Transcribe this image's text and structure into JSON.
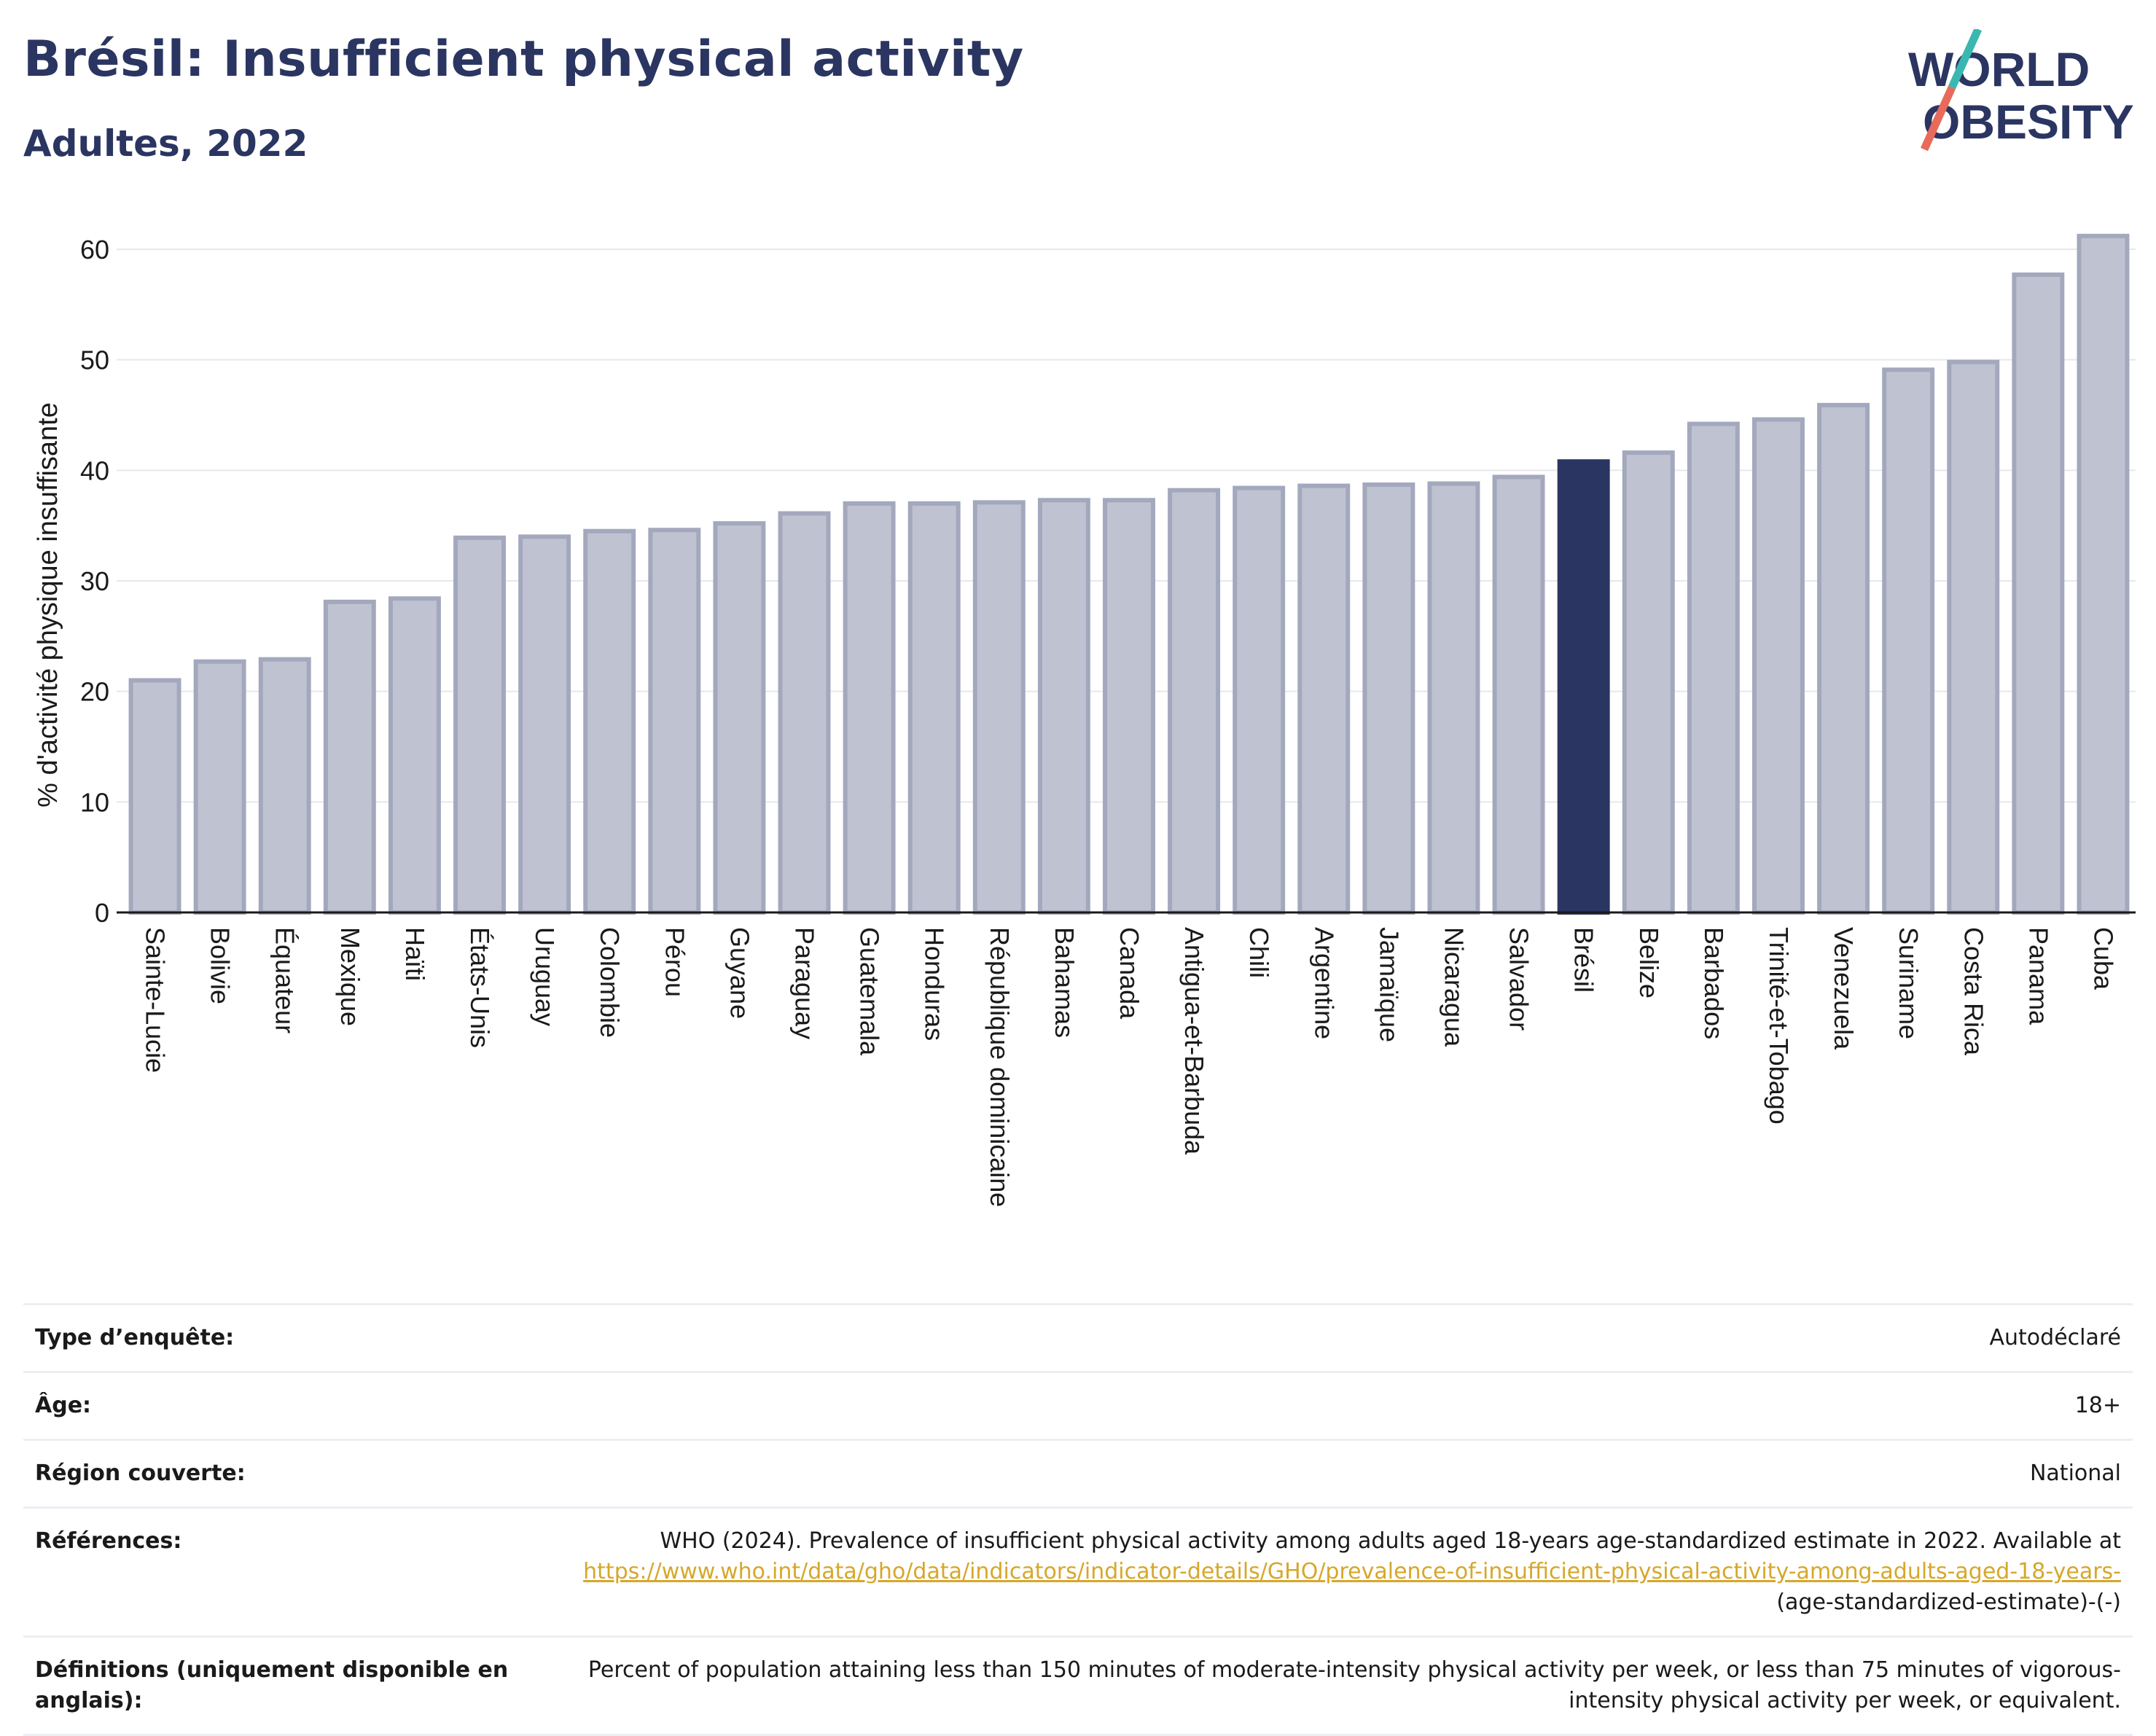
{
  "header": {
    "title": "Brésil: Insufficient physical activity",
    "subtitle": "Adultes, 2022",
    "logo_line1": "WORLD",
    "logo_line2": "OBESITY"
  },
  "colors": {
    "title": "#2b3561",
    "bar": "#bfc3d1",
    "bar_border": "#a3a8bd",
    "highlight": "#2b3561",
    "link": "#d6a72a",
    "logo_teal": "#3bb7b1",
    "logo_coral": "#e86a5a"
  },
  "chart_data": {
    "type": "bar",
    "ylabel": "% d'activité physique insuffisante",
    "ylim": [
      0,
      63
    ],
    "yticks": [
      0,
      10,
      20,
      30,
      40,
      50,
      60
    ],
    "grid": true,
    "highlight": "Brésil",
    "categories": [
      "Sainte-Lucie",
      "Bolivie",
      "Équateur",
      "Mexique",
      "Haïti",
      "États-Unis",
      "Uruguay",
      "Colombie",
      "Pérou",
      "Guyane",
      "Paraguay",
      "Guatemala",
      "Honduras",
      "République dominicaine",
      "Bahamas",
      "Canada",
      "Antigua-et-Barbuda",
      "Chili",
      "Argentine",
      "Jamaïque",
      "Nicaragua",
      "Salvador",
      "Brésil",
      "Belize",
      "Barbados",
      "Trinité-et-Tobago",
      "Venezuela",
      "Suriname",
      "Costa Rica",
      "Panama",
      "Cuba"
    ],
    "values": [
      21.0,
      22.7,
      22.9,
      28.1,
      28.4,
      33.9,
      34.0,
      34.5,
      34.6,
      35.2,
      36.1,
      37.0,
      37.0,
      37.1,
      37.3,
      37.3,
      38.2,
      38.4,
      38.6,
      38.7,
      38.8,
      39.4,
      40.8,
      41.6,
      44.2,
      44.6,
      45.9,
      49.1,
      49.8,
      57.7,
      61.2
    ]
  },
  "meta": {
    "survey_type_label": "Type d’enquête:",
    "survey_type_value": "Autodéclaré",
    "age_label": "Âge:",
    "age_value": "18+",
    "region_label": "Région couverte:",
    "region_value": "National",
    "references_label": "Références:",
    "references_text": "WHO (2024). Prevalence of insufficient physical activity among adults aged 18-years age-standardized estimate in 2022. Available at",
    "references_link": "https://www.who.int/data/gho/data/indicators/indicator-details/GHO/prevalence-of-insufficient-physical-activity-among-adults-aged-18-years-",
    "references_suffix": "(age-standardized-estimate)-(-)",
    "definitions_label": "Définitions (uniquement disponible en anglais):",
    "definitions_value": "Percent of population attaining less than 150 minutes of moderate-intensity physical activity per week, or less than 75 minutes of vigorous-intensity physical activity per week, or equivalent."
  }
}
